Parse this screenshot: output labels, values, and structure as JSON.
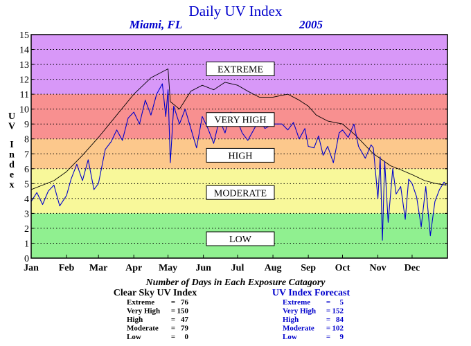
{
  "chart_data": {
    "type": "line",
    "title": "Daily UV Index",
    "subtitle_location": "Miami, FL",
    "subtitle_year": "2005",
    "ylabel": "UV Index",
    "ylim": [
      0,
      15
    ],
    "xlim": [
      0,
      365
    ],
    "yticks": [
      0,
      1,
      2,
      3,
      4,
      5,
      6,
      7,
      8,
      9,
      10,
      11,
      12,
      13,
      14,
      15
    ],
    "months": [
      "Jan",
      "Feb",
      "Mar",
      "Apr",
      "May",
      "Jun",
      "Jul",
      "Aug",
      "Sep",
      "Oct",
      "Nov",
      "Dec"
    ],
    "month_starts": [
      0,
      31,
      59,
      90,
      120,
      151,
      181,
      212,
      243,
      273,
      304,
      334
    ],
    "grid": "horizontal dotted",
    "bands": [
      {
        "label": "LOW",
        "from": 0,
        "to": 3,
        "color": "#90f090",
        "label_at": 1.3
      },
      {
        "label": "MODERATE",
        "from": 3,
        "to": 6,
        "color": "#f8f89a",
        "label_at": 4.4
      },
      {
        "label": "HIGH",
        "from": 6,
        "to": 8,
        "color": "#fcc88c",
        "label_at": 6.9
      },
      {
        "label": "VERY HIGH",
        "from": 8,
        "to": 11,
        "color": "#f89090",
        "label_at": 9.3
      },
      {
        "label": "EXTREME",
        "from": 11,
        "to": 15,
        "color": "#d898f8",
        "label_at": 12.7
      }
    ],
    "series": [
      {
        "name": "Clear Sky UV Index",
        "color": "#000000",
        "points": [
          [
            0,
            4.6
          ],
          [
            10,
            4.9
          ],
          [
            20,
            5.2
          ],
          [
            31,
            5.8
          ],
          [
            45,
            6.9
          ],
          [
            59,
            8.1
          ],
          [
            75,
            9.6
          ],
          [
            90,
            11.0
          ],
          [
            105,
            12.1
          ],
          [
            120,
            12.7
          ],
          [
            122,
            10.5
          ],
          [
            130,
            10.0
          ],
          [
            140,
            11.2
          ],
          [
            150,
            11.6
          ],
          [
            160,
            11.3
          ],
          [
            170,
            11.8
          ],
          [
            181,
            11.6
          ],
          [
            190,
            11.2
          ],
          [
            200,
            10.8
          ],
          [
            212,
            10.8
          ],
          [
            225,
            11.0
          ],
          [
            235,
            10.6
          ],
          [
            243,
            10.2
          ],
          [
            250,
            9.6
          ],
          [
            260,
            9.2
          ],
          [
            273,
            9.0
          ],
          [
            285,
            8.2
          ],
          [
            300,
            7.0
          ],
          [
            304,
            6.8
          ],
          [
            315,
            6.2
          ],
          [
            325,
            5.9
          ],
          [
            334,
            5.6
          ],
          [
            345,
            5.2
          ],
          [
            355,
            5.0
          ],
          [
            364,
            4.9
          ]
        ]
      },
      {
        "name": "UV Index Forecast",
        "color": "#0000cc",
        "points": [
          [
            0,
            3.8
          ],
          [
            5,
            4.4
          ],
          [
            10,
            3.6
          ],
          [
            15,
            4.5
          ],
          [
            20,
            4.9
          ],
          [
            25,
            3.5
          ],
          [
            31,
            4.2
          ],
          [
            35,
            5.3
          ],
          [
            40,
            6.3
          ],
          [
            45,
            5.2
          ],
          [
            50,
            6.6
          ],
          [
            55,
            4.6
          ],
          [
            59,
            5.0
          ],
          [
            65,
            7.3
          ],
          [
            70,
            7.8
          ],
          [
            75,
            8.6
          ],
          [
            80,
            7.9
          ],
          [
            85,
            9.4
          ],
          [
            90,
            9.8
          ],
          [
            95,
            9.0
          ],
          [
            100,
            10.6
          ],
          [
            105,
            9.6
          ],
          [
            110,
            11.0
          ],
          [
            115,
            11.7
          ],
          [
            118,
            9.5
          ],
          [
            120,
            11.3
          ],
          [
            122,
            6.4
          ],
          [
            125,
            10.2
          ],
          [
            130,
            9.0
          ],
          [
            135,
            10.0
          ],
          [
            140,
            8.7
          ],
          [
            145,
            7.4
          ],
          [
            150,
            9.5
          ],
          [
            155,
            8.7
          ],
          [
            160,
            7.7
          ],
          [
            165,
            9.3
          ],
          [
            170,
            8.4
          ],
          [
            175,
            9.8
          ],
          [
            181,
            9.2
          ],
          [
            185,
            8.4
          ],
          [
            190,
            7.9
          ],
          [
            195,
            8.6
          ],
          [
            200,
            9.3
          ],
          [
            205,
            8.7
          ],
          [
            212,
            9.0
          ],
          [
            220,
            9.0
          ],
          [
            225,
            8.6
          ],
          [
            230,
            9.1
          ],
          [
            235,
            8.0
          ],
          [
            240,
            8.7
          ],
          [
            243,
            7.5
          ],
          [
            248,
            7.4
          ],
          [
            252,
            8.2
          ],
          [
            256,
            6.9
          ],
          [
            260,
            7.5
          ],
          [
            265,
            6.4
          ],
          [
            270,
            8.4
          ],
          [
            273,
            8.6
          ],
          [
            278,
            8.1
          ],
          [
            283,
            9.0
          ],
          [
            287,
            7.5
          ],
          [
            293,
            6.7
          ],
          [
            298,
            7.6
          ],
          [
            300,
            7.4
          ],
          [
            304,
            4.0
          ],
          [
            306,
            6.8
          ],
          [
            308,
            1.2
          ],
          [
            310,
            6.5
          ],
          [
            313,
            2.4
          ],
          [
            317,
            6.0
          ],
          [
            320,
            4.3
          ],
          [
            324,
            4.8
          ],
          [
            328,
            2.6
          ],
          [
            331,
            5.3
          ],
          [
            334,
            5.0
          ],
          [
            338,
            4.1
          ],
          [
            342,
            2.1
          ],
          [
            346,
            4.8
          ],
          [
            350,
            1.5
          ],
          [
            354,
            3.8
          ],
          [
            358,
            4.6
          ],
          [
            362,
            5.1
          ],
          [
            364,
            4.9
          ]
        ]
      }
    ],
    "category_section_title": "Number of Days in Each Exposure Catagory",
    "category_counts": [
      {
        "name": "Clear Sky UV Index",
        "rows": [
          {
            "label": "Extreme",
            "value": "76"
          },
          {
            "label": "Very High",
            "value": "150"
          },
          {
            "label": "High",
            "value": "47"
          },
          {
            "label": "Moderate",
            "value": "79"
          },
          {
            "label": "Low",
            "value": "0"
          }
        ]
      },
      {
        "name": "UV Index Forecast",
        "rows": [
          {
            "label": "Extreme",
            "value": "5"
          },
          {
            "label": "Very High",
            "value": "152"
          },
          {
            "label": "High",
            "value": "84"
          },
          {
            "label": "Moderate",
            "value": "102"
          },
          {
            "label": "Low",
            "value": "9"
          }
        ]
      }
    ]
  }
}
